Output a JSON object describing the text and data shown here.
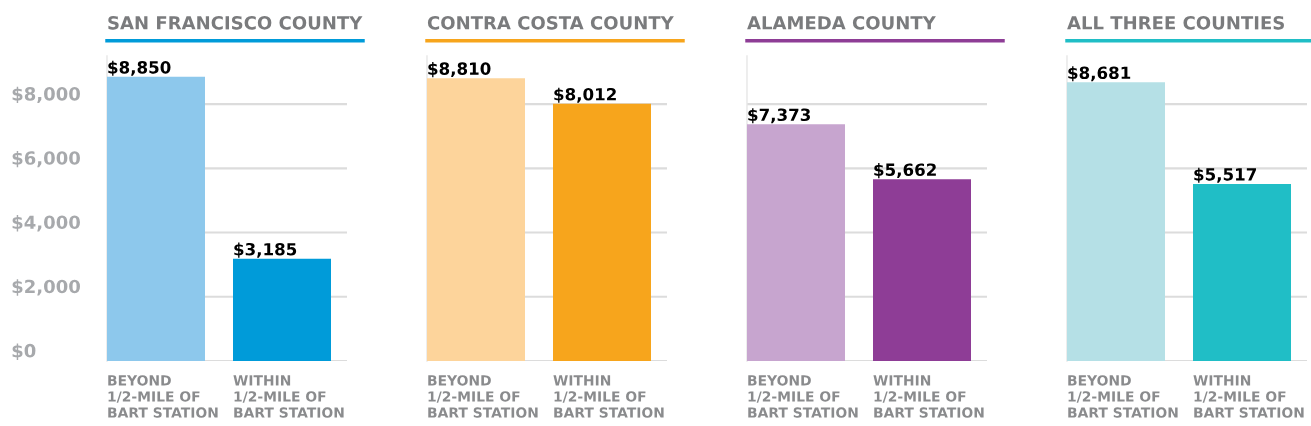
{
  "chart_data": [
    {
      "type": "bar",
      "title": "SAN FRANCISCO COUNTY",
      "categories": [
        "BEYOND\n1/2-MILE OF\nBART STATION",
        "WITHIN\n1/2-MILE OF\nBART STATION"
      ],
      "values": [
        8850,
        3185
      ],
      "colors": [
        "#8dc8ec",
        "#009bd9"
      ],
      "value_labels": [
        "$8,850",
        "$3,185"
      ],
      "ylim": [
        0,
        9500
      ],
      "yticks": [
        {
          "value": 0,
          "label": "$0"
        },
        {
          "value": 2000,
          "label": "$2,000"
        },
        {
          "value": 4000,
          "label": "$4,000"
        },
        {
          "value": 6000,
          "label": "$6,000"
        },
        {
          "value": 8000,
          "label": "$8,000"
        }
      ],
      "grid": "y"
    },
    {
      "type": "bar",
      "title": "CONTRA COSTA COUNTY",
      "categories": [
        "BEYOND\n1/2-MILE OF\nBART STATION",
        "WITHIN\n1/2-MILE OF\nBART STATION"
      ],
      "values": [
        8810,
        8012
      ],
      "colors": [
        "#fdd49b",
        "#f7a51c"
      ],
      "value_labels": [
        "$8,810",
        "$8,012"
      ],
      "ylim": [
        0,
        9500
      ],
      "yticks": [
        {
          "value": 0,
          "label": null
        },
        {
          "value": 2000,
          "label": null
        },
        {
          "value": 4000,
          "label": null
        },
        {
          "value": 6000,
          "label": null
        },
        {
          "value": 8000,
          "label": null
        }
      ],
      "grid": "y",
      "tick_labels": "x"
    },
    {
      "type": "bar",
      "title": "ALAMEDA COUNTY",
      "categories": [
        "BEYOND\n1/2-MILE OF\nBART STATION",
        "WITHIN\n1/2-MILE OF\nBART STATION"
      ],
      "values": [
        7373,
        5662
      ],
      "colors": [
        "#c7a5cf",
        "#8e3d96"
      ],
      "value_labels": [
        "$7,373",
        "$5,662"
      ],
      "ylim": [
        0,
        9500
      ],
      "yticks": [
        {
          "value": 0,
          "label": null
        },
        {
          "value": 2000,
          "label": null
        },
        {
          "value": 4000,
          "label": null
        },
        {
          "value": 6000,
          "label": null
        },
        {
          "value": 8000,
          "label": null
        }
      ],
      "grid": "y",
      "tick_labels": "x"
    },
    {
      "type": "bar",
      "title": "ALL THREE COUNTIES",
      "categories": [
        "BEYOND\n1/2-MILE OF\nBART STATION",
        "WITHIN\n1/2-MILE OF\nBART STATION"
      ],
      "values": [
        8681,
        5517
      ],
      "colors": [
        "#b5e0e6",
        "#20bec6"
      ],
      "value_labels": [
        "$8,681",
        "$5,517"
      ],
      "ylim": [
        0,
        9500
      ],
      "yticks": [
        {
          "value": 0,
          "label": null
        },
        {
          "value": 2000,
          "label": null
        },
        {
          "value": 4000,
          "label": null
        },
        {
          "value": 6000,
          "label": null
        },
        {
          "value": 8000,
          "label": null
        }
      ],
      "grid": "y",
      "tick_labels": "x"
    }
  ]
}
